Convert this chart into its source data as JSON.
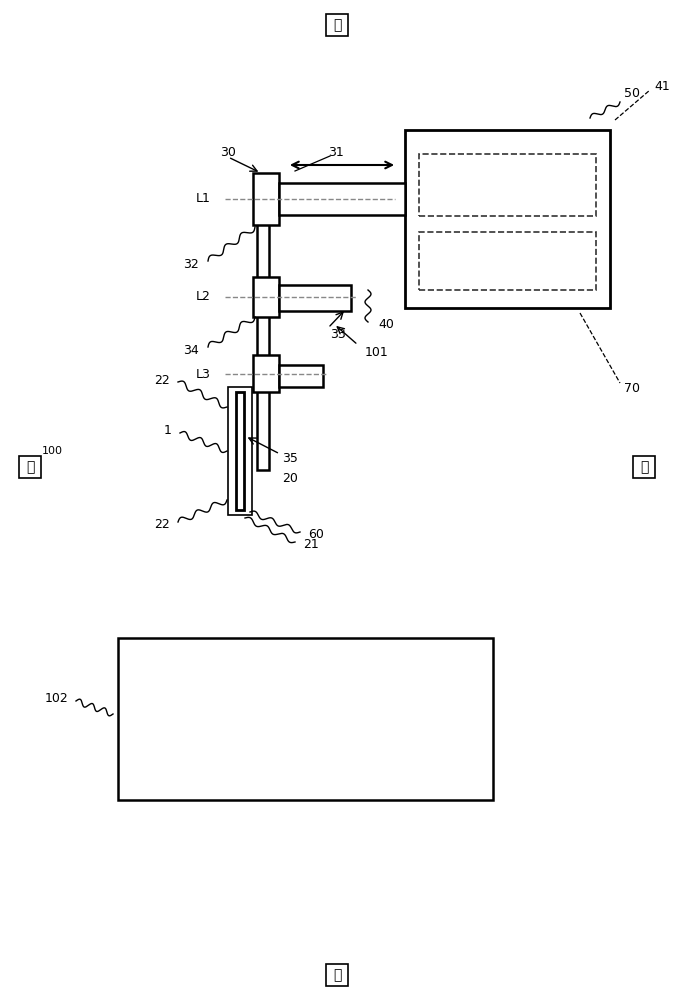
{
  "bg": "#ffffff",
  "lc": "#000000",
  "fig_w": 6.74,
  "fig_h": 10.0,
  "top_char": "右",
  "bot_char": "前",
  "left_char": "左",
  "right_char": "右",
  "n100": "100",
  "n101": "101",
  "n102": "102",
  "n1": "1",
  "n20": "20",
  "n21": "21",
  "n22": "22",
  "n30": "30",
  "n31": "31",
  "n32": "32",
  "n33": "33",
  "n34": "34",
  "n35": "35",
  "n40": "40",
  "n41": "41",
  "n50": "50",
  "n60": "60",
  "n70": "70",
  "nL1": "L1",
  "nL2": "L2",
  "nL3": "L3"
}
